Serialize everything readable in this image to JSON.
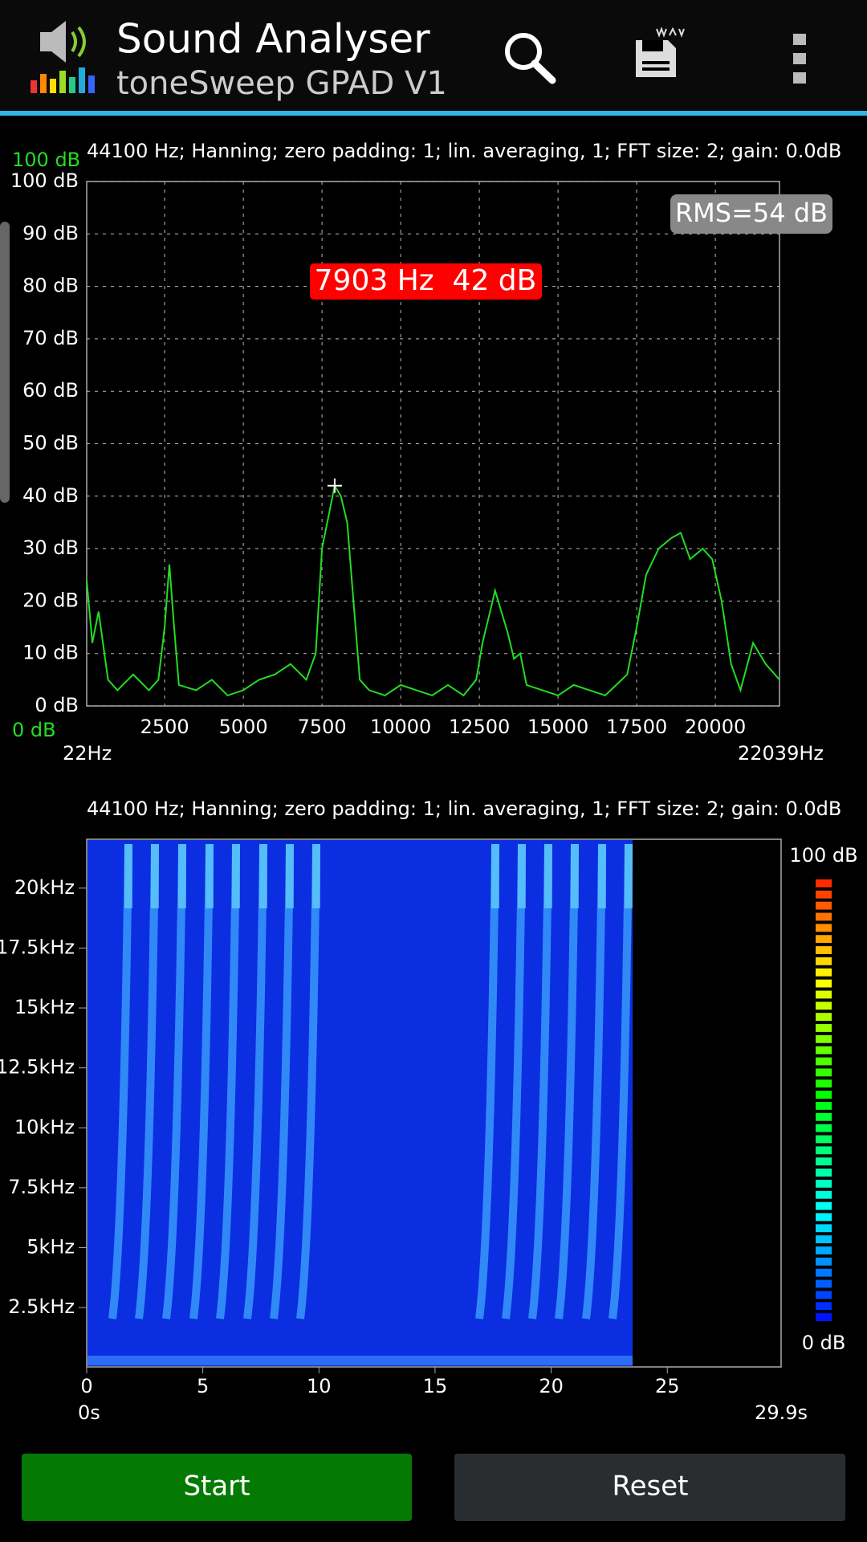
{
  "app_bar": {
    "title": "Sound Analyser",
    "subtitle": "toneSweep GPAD V1"
  },
  "chart_data": [
    {
      "type": "line",
      "info": "44100 Hz; Hanning; zero padding: 1; lin. averaging, 1; FFT size: 2; gain: 0.0dB",
      "x": [
        22,
        200,
        400,
        700,
        1000,
        1500,
        2000,
        2300,
        2500,
        2650,
        2800,
        2950,
        3500,
        4000,
        4500,
        5000,
        5500,
        6000,
        6500,
        7000,
        7300,
        7500,
        7700,
        7903,
        8100,
        8300,
        8500,
        8700,
        9000,
        9500,
        10000,
        10500,
        11000,
        11500,
        12000,
        12400,
        12600,
        12800,
        13000,
        13200,
        13400,
        13600,
        13800,
        14000,
        14500,
        15000,
        15500,
        16000,
        16500,
        17200,
        17500,
        17800,
        18200,
        18600,
        18900,
        19200,
        19600,
        19900,
        20200,
        20500,
        20800,
        21200,
        21600,
        22039
      ],
      "values": [
        24,
        12,
        18,
        5,
        3,
        6,
        3,
        5,
        15,
        27,
        15,
        4,
        3,
        5,
        2,
        3,
        5,
        6,
        8,
        5,
        10,
        30,
        36,
        42,
        40,
        35,
        20,
        5,
        3,
        2,
        4,
        3,
        2,
        4,
        2,
        5,
        12,
        17,
        22,
        18,
        14,
        9,
        10,
        4,
        3,
        2,
        4,
        3,
        2,
        6,
        15,
        25,
        30,
        32,
        33,
        28,
        30,
        28,
        20,
        8,
        3,
        12,
        8,
        5
      ],
      "color": "#22dd22",
      "xlim": [
        22,
        22039
      ],
      "xlim_labels": [
        "22Hz",
        "22039Hz"
      ],
      "xticks": [
        2500,
        5000,
        7500,
        10000,
        12500,
        15000,
        17500,
        20000
      ],
      "ylim": [
        0,
        100
      ],
      "yticks": [
        {
          "value": 0,
          "label": "0 dB"
        },
        {
          "value": 10,
          "label": "10 dB"
        },
        {
          "value": 20,
          "label": "20 dB"
        },
        {
          "value": 30,
          "label": "30 dB"
        },
        {
          "value": 40,
          "label": "40 dB"
        },
        {
          "value": 50,
          "label": "50 dB"
        },
        {
          "value": 60,
          "label": "60 dB"
        },
        {
          "value": 70,
          "label": "70 dB"
        },
        {
          "value": 80,
          "label": "80 dB"
        },
        {
          "value": 90,
          "label": "90 dB"
        },
        {
          "value": 100,
          "label": "100 dB"
        }
      ],
      "range_labels": [
        "100 dB",
        "0 dB"
      ],
      "rms_label": "RMS=54 dB",
      "peak": {
        "x": 7903,
        "y": 42,
        "label": "7903 Hz  42 dB"
      },
      "grid": true
    },
    {
      "type": "heatmap",
      "info": "44100 Hz; Hanning; zero padding: 1; lin. averaging, 1; FFT size: 2; gain: 0.0dB",
      "xlim": [
        0,
        29.9
      ],
      "xlim_labels": [
        "0s",
        "29.9s"
      ],
      "xticks": [
        0,
        5,
        10,
        15,
        20,
        25
      ],
      "ylim": [
        22,
        22039
      ],
      "yticks": [
        {
          "value": 2500,
          "label": "2.5kHz"
        },
        {
          "value": 5000,
          "label": "5kHz"
        },
        {
          "value": 7500,
          "label": "7.5kHz"
        },
        {
          "value": 10000,
          "label": "10kHz"
        },
        {
          "value": 12500,
          "label": "12.5kHz"
        },
        {
          "value": 15000,
          "label": "15kHz"
        },
        {
          "value": 17500,
          "label": "17.5kHz"
        },
        {
          "value": 20000,
          "label": "20kHz"
        }
      ],
      "clim": [
        0,
        100
      ],
      "cticks": [
        {
          "value": 100,
          "label": "100 dB"
        },
        {
          "value": 0,
          "label": "0 dB"
        }
      ]
    }
  ],
  "buttons": [
    "Start",
    "Reset"
  ]
}
